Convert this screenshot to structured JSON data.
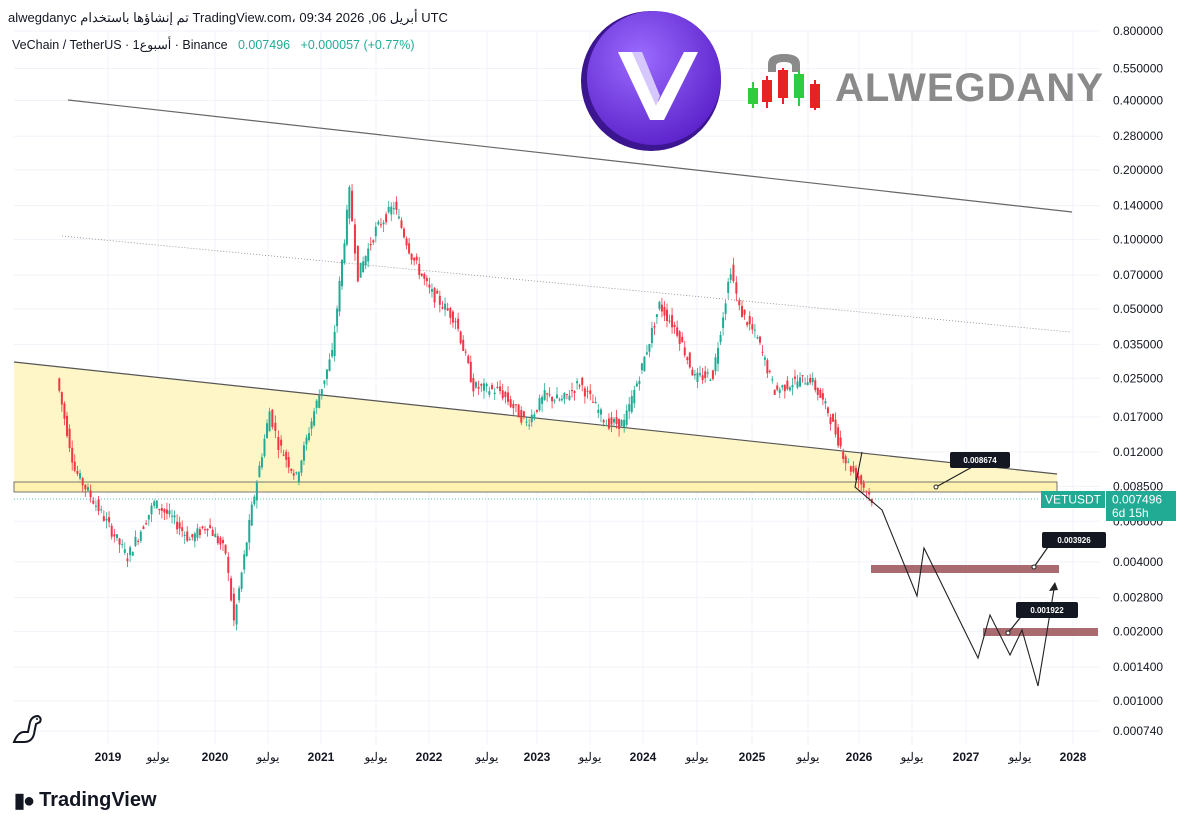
{
  "header": {
    "top_line": "alwegdanyc تم إنشاؤها باستخدام TradingView.com، 09:34 2026 ,06 أبريل UTC",
    "symbol_line": "VeChain / TetherUS · 1أسبوع · Binance",
    "price": "0.007496",
    "change": "+0.000057 (+0.77%)"
  },
  "price_axis": {
    "labels": [
      "0.800000",
      "0.550000",
      "0.400000",
      "0.280000",
      "0.200000",
      "0.140000",
      "0.100000",
      "0.070000",
      "0.050000",
      "0.035000",
      "0.025000",
      "0.017000",
      "0.012000",
      "0.008500",
      "0.006000",
      "0.004000",
      "0.002800",
      "0.002000",
      "0.001400",
      "0.001000",
      "0.000740"
    ],
    "values": [
      0.8,
      0.55,
      0.4,
      0.28,
      0.2,
      0.14,
      0.1,
      0.07,
      0.05,
      0.035,
      0.025,
      0.017,
      0.012,
      0.0085,
      0.006,
      0.004,
      0.0028,
      0.002,
      0.0014,
      0.001,
      0.00074
    ],
    "scale": "log"
  },
  "time_axis": {
    "labels": [
      "2019",
      "يوليو",
      "2020",
      "يوليو",
      "2021",
      "يوليو",
      "2022",
      "يوليو",
      "2023",
      "يوليو",
      "2024",
      "يوليو",
      "2025",
      "يوليو",
      "2026",
      "يوليو",
      "2027",
      "يوليو",
      "2028"
    ]
  },
  "current_price_tag": {
    "symbol": "VETUSDT",
    "price": "0.007496",
    "countdown": "6d 15h"
  },
  "callouts": [
    "0.008674",
    "0.003926",
    "0.001922"
  ],
  "branding": {
    "watermark": "ALWEGDANY",
    "footer": "TradingView"
  },
  "colors": {
    "up": "#22ab94",
    "down": "#f23645",
    "zone_fill": "#fff6c8",
    "target_band": "#a96b6f",
    "price_tag": "#22ab94"
  },
  "chart_data": {
    "type": "line",
    "series": [
      {
        "x": [
          "2018-07",
          "2018-09",
          "2018-12",
          "2019-03",
          "2019-06",
          "2019-08",
          "2019-10",
          "2019-12",
          "2020-02",
          "2020-03",
          "2020-05",
          "2020-07",
          "2020-08",
          "2020-10",
          "2020-12",
          "2021-02",
          "2021-04",
          "2021-05",
          "2021-07",
          "2021-09",
          "2021-11",
          "2022-01",
          "2022-04",
          "2022-06",
          "2022-09",
          "2022-12",
          "2023-02",
          "2023-04",
          "2023-06",
          "2023-09",
          "2023-11",
          "2024-01",
          "2024-03",
          "2024-05",
          "2024-07",
          "2024-09",
          "2024-11",
          "2024-12",
          "2025-02",
          "2025-04",
          "2025-06",
          "2025-08",
          "2025-10",
          "2025-12",
          "2026-02",
          "2026-03"
        ],
        "y": [
          0.025,
          0.01,
          0.0065,
          0.0042,
          0.0072,
          0.0062,
          0.005,
          0.0058,
          0.0044,
          0.0022,
          0.0068,
          0.018,
          0.013,
          0.0093,
          0.018,
          0.032,
          0.16,
          0.07,
          0.11,
          0.14,
          0.085,
          0.06,
          0.045,
          0.023,
          0.022,
          0.016,
          0.021,
          0.02,
          0.024,
          0.016,
          0.016,
          0.028,
          0.052,
          0.04,
          0.025,
          0.026,
          0.075,
          0.05,
          0.037,
          0.022,
          0.024,
          0.025,
          0.018,
          0.011,
          0.0085,
          0.0075
        ]
      }
    ],
    "ylim": [
      0.00074,
      0.8
    ],
    "xlim": [
      "2018-07",
      "2028-03"
    ],
    "yscale": "log",
    "grid": true,
    "legend": "none"
  }
}
